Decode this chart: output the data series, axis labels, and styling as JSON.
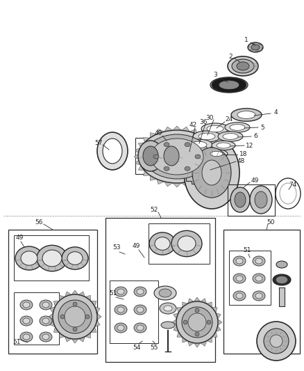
{
  "bg_color": "#ffffff",
  "fig_width": 4.38,
  "fig_height": 5.33,
  "dpi": 100,
  "line_color": "#2a2a2a",
  "label_fontsize": 6.5,
  "annotation_color": "#222222",
  "gray_dark": "#2a2a2a",
  "gray_mid": "#7a7a7a",
  "gray_light": "#c8c8c8",
  "gray_ring": "#aaaaaa",
  "white": "#ffffff"
}
